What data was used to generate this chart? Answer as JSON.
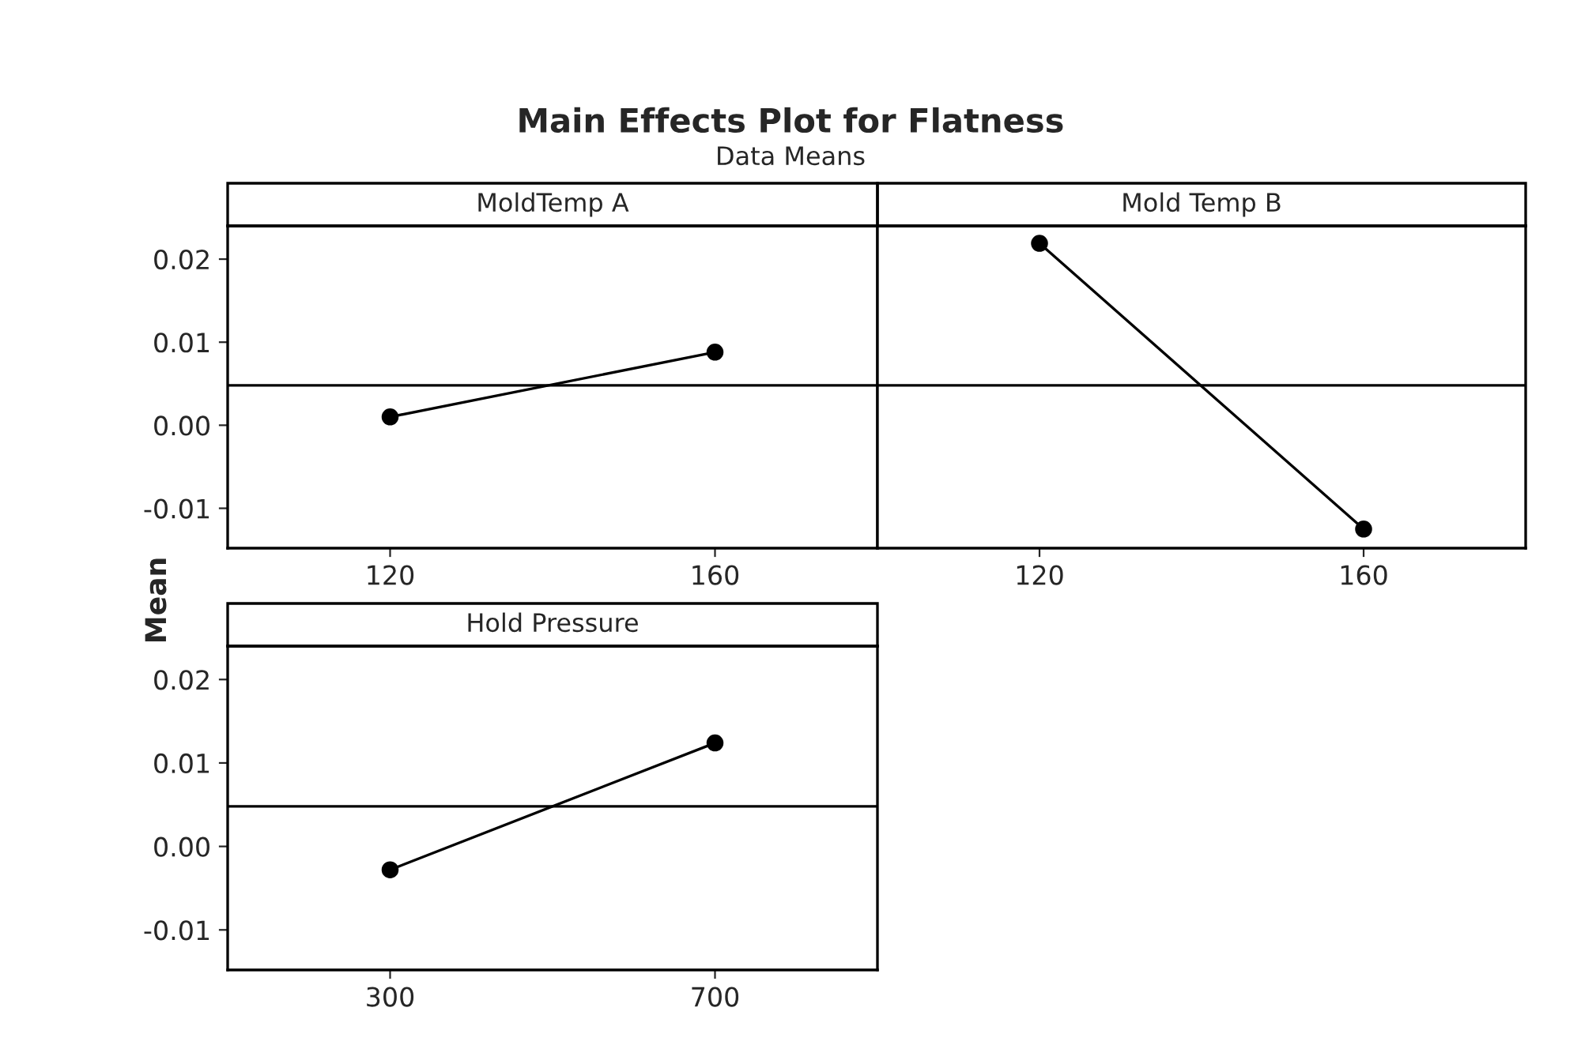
{
  "chart_data": [
    {
      "type": "line",
      "title": "MoldTemp A",
      "ylabel": "Mean",
      "annotations": [
        "Main Effects Plot for Flatness",
        "Data Means"
      ],
      "categories": [
        "120",
        "160"
      ],
      "values": [
        0.001,
        0.0088
      ],
      "color": "#000000",
      "marker": "circle",
      "ylim": [
        -0.0148,
        0.024
      ],
      "yticks": [
        {
          "value": -0.01,
          "label": "-0.01"
        },
        {
          "value": 0.0,
          "label": "0.00"
        },
        {
          "value": 0.01,
          "label": "0.01"
        },
        {
          "value": 0.02,
          "label": "0.02"
        }
      ],
      "ref_lines": [
        {
          "axis": "y",
          "value": 0.0048,
          "color": "#000000"
        }
      ],
      "grid": false
    },
    {
      "type": "line",
      "title": "Mold Temp B",
      "categories": [
        "120",
        "160"
      ],
      "values": [
        0.0219,
        -0.0125
      ],
      "color": "#000000",
      "marker": "circle",
      "ylim": [
        -0.0148,
        0.024
      ],
      "yticks": [
        {
          "value": -0.01,
          "label": null
        },
        {
          "value": 0.0,
          "label": null
        },
        {
          "value": 0.01,
          "label": null
        },
        {
          "value": 0.02,
          "label": null
        }
      ],
      "tick_labels": "x",
      "ref_lines": [
        {
          "axis": "y",
          "value": 0.0048,
          "color": "#000000"
        }
      ],
      "grid": false
    },
    {
      "type": "line",
      "title": "Hold Pressure",
      "categories": [
        "300",
        "700"
      ],
      "values": [
        -0.0028,
        0.0124
      ],
      "color": "#000000",
      "marker": "circle",
      "ylim": [
        -0.0148,
        0.024
      ],
      "yticks": [
        {
          "value": -0.01,
          "label": "-0.01"
        },
        {
          "value": 0.0,
          "label": "0.00"
        },
        {
          "value": 0.01,
          "label": "0.01"
        },
        {
          "value": 0.02,
          "label": "0.02"
        }
      ],
      "ref_lines": [
        {
          "axis": "y",
          "value": 0.0048,
          "color": "#000000"
        }
      ],
      "grid": false
    }
  ]
}
